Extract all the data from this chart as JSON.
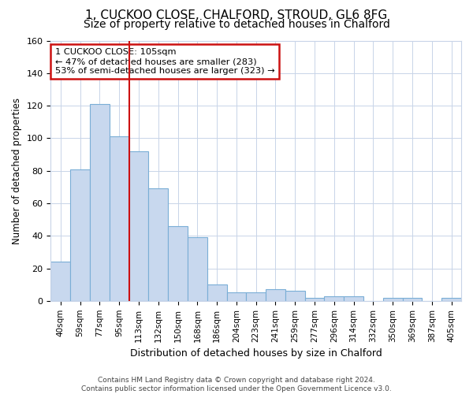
{
  "title1": "1, CUCKOO CLOSE, CHALFORD, STROUD, GL6 8FG",
  "title2": "Size of property relative to detached houses in Chalford",
  "xlabel": "Distribution of detached houses by size in Chalford",
  "ylabel": "Number of detached properties",
  "categories": [
    "40sqm",
    "59sqm",
    "77sqm",
    "95sqm",
    "113sqm",
    "132sqm",
    "150sqm",
    "168sqm",
    "186sqm",
    "204sqm",
    "223sqm",
    "241sqm",
    "259sqm",
    "277sqm",
    "296sqm",
    "314sqm",
    "332sqm",
    "350sqm",
    "369sqm",
    "387sqm",
    "405sqm"
  ],
  "values": [
    24,
    81,
    121,
    101,
    92,
    69,
    46,
    39,
    10,
    5,
    5,
    7,
    6,
    2,
    3,
    3,
    0,
    2,
    2,
    0,
    2
  ],
  "bar_color": "#c8d8ee",
  "bar_edge_color": "#7aaed6",
  "grid_color": "#c8d4e8",
  "background_color": "#ffffff",
  "vline_color": "#cc1111",
  "vline_x": 3.5,
  "annotation_line1": "1 CUCKOO CLOSE: 105sqm",
  "annotation_line2": "← 47% of detached houses are smaller (283)",
  "annotation_line3": "53% of semi-detached houses are larger (323) →",
  "annotation_box_color": "#ffffff",
  "annotation_box_edge": "#cc1111",
  "ylim": [
    0,
    160
  ],
  "yticks": [
    0,
    20,
    40,
    60,
    80,
    100,
    120,
    140,
    160
  ],
  "title1_fontsize": 11,
  "title2_fontsize": 10,
  "footer1": "Contains HM Land Registry data © Crown copyright and database right 2024.",
  "footer2": "Contains public sector information licensed under the Open Government Licence v3.0."
}
